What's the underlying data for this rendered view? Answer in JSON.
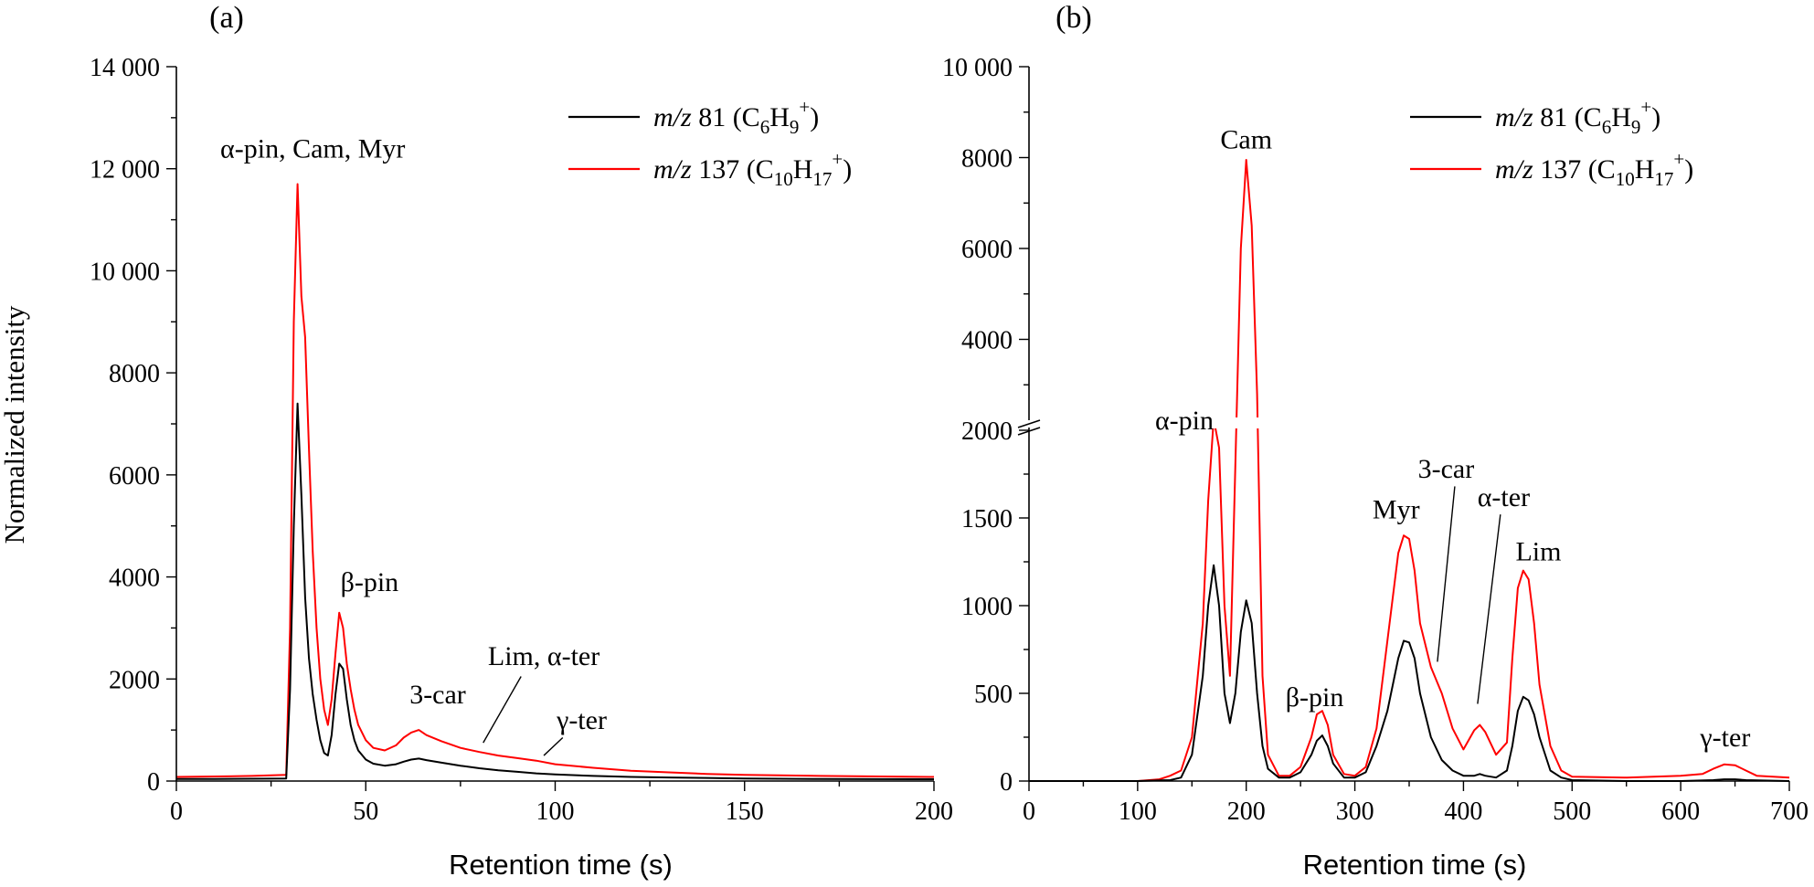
{
  "chart_data": [
    {
      "panel": "(a)",
      "type": "line",
      "xlabel": "Retention time (s)",
      "ylabel": "Normalized intensity",
      "xlim": [
        0,
        200
      ],
      "ylim": [
        0,
        14000
      ],
      "x_ticks": [
        0,
        50,
        100,
        150,
        200
      ],
      "x_tick_labels": [
        "0",
        "50",
        "100",
        "150",
        "200"
      ],
      "y_ticks": [
        0,
        2000,
        4000,
        6000,
        8000,
        10000,
        12000,
        14000
      ],
      "y_tick_labels": [
        "0",
        "2000",
        "4000",
        "6000",
        "8000",
        "10 000",
        "12 000",
        "14 000"
      ],
      "legend": {
        "placement": "top-right",
        "entries": [
          {
            "prefix": "m/z",
            "text": " 81 (C",
            "sub1": "6",
            "mid": "H",
            "sub2": "9",
            "sup": "+",
            "end": ")",
            "color": "#000000"
          },
          {
            "prefix": "m/z",
            "text": " 137 (C",
            "sub1": "10",
            "mid": "H",
            "sub2": "17",
            "sup": "+",
            "end": ")",
            "color": "#ff0000"
          }
        ]
      },
      "annotations": [
        {
          "text": "α-pin, Cam, Myr",
          "x": 36,
          "y": 12400
        },
        {
          "text": "β-pin",
          "x": 51,
          "y": 3900
        },
        {
          "text": "3-car",
          "x": 69,
          "y": 1700
        },
        {
          "text": "Lim, α-ter",
          "x": 97,
          "y": 2450
        },
        {
          "text": "γ-ter",
          "x": 107,
          "y": 1200
        }
      ],
      "series": [
        {
          "name": "m/z 81 (C6H9+)",
          "color": "#000000",
          "points": [
            [
              0,
              40
            ],
            [
              10,
              40
            ],
            [
              20,
              45
            ],
            [
              29,
              50
            ],
            [
              30,
              1800
            ],
            [
              31,
              5000
            ],
            [
              32,
              7400
            ],
            [
              33,
              5600
            ],
            [
              34,
              3600
            ],
            [
              35,
              2400
            ],
            [
              36,
              1700
            ],
            [
              37,
              1200
            ],
            [
              38,
              800
            ],
            [
              39,
              550
            ],
            [
              40,
              500
            ],
            [
              41,
              900
            ],
            [
              42,
              1700
            ],
            [
              43,
              2300
            ],
            [
              44,
              2200
            ],
            [
              45,
              1600
            ],
            [
              46,
              1100
            ],
            [
              47,
              800
            ],
            [
              48,
              600
            ],
            [
              50,
              420
            ],
            [
              52,
              340
            ],
            [
              55,
              300
            ],
            [
              58,
              330
            ],
            [
              60,
              380
            ],
            [
              62,
              420
            ],
            [
              64,
              440
            ],
            [
              66,
              410
            ],
            [
              70,
              360
            ],
            [
              75,
              300
            ],
            [
              80,
              250
            ],
            [
              85,
              210
            ],
            [
              90,
              180
            ],
            [
              95,
              150
            ],
            [
              100,
              130
            ],
            [
              110,
              100
            ],
            [
              120,
              80
            ],
            [
              130,
              70
            ],
            [
              140,
              60
            ],
            [
              150,
              50
            ],
            [
              170,
              40
            ],
            [
              200,
              35
            ]
          ]
        },
        {
          "name": "m/z 137 (C10H17+)",
          "color": "#ff0000",
          "points": [
            [
              0,
              80
            ],
            [
              10,
              90
            ],
            [
              20,
              100
            ],
            [
              29,
              120
            ],
            [
              30,
              3000
            ],
            [
              31,
              9000
            ],
            [
              32,
              11700
            ],
            [
              33,
              9500
            ],
            [
              34,
              8700
            ],
            [
              35,
              6500
            ],
            [
              36,
              4500
            ],
            [
              37,
              3000
            ],
            [
              38,
              2000
            ],
            [
              39,
              1400
            ],
            [
              40,
              1100
            ],
            [
              41,
              1600
            ],
            [
              42,
              2500
            ],
            [
              43,
              3300
            ],
            [
              44,
              3000
            ],
            [
              45,
              2300
            ],
            [
              46,
              1800
            ],
            [
              47,
              1400
            ],
            [
              48,
              1100
            ],
            [
              50,
              800
            ],
            [
              52,
              650
            ],
            [
              55,
              600
            ],
            [
              58,
              700
            ],
            [
              60,
              850
            ],
            [
              62,
              950
            ],
            [
              64,
              1000
            ],
            [
              66,
              900
            ],
            [
              70,
              780
            ],
            [
              75,
              650
            ],
            [
              80,
              570
            ],
            [
              85,
              500
            ],
            [
              90,
              450
            ],
            [
              95,
              400
            ],
            [
              100,
              330
            ],
            [
              110,
              260
            ],
            [
              120,
              200
            ],
            [
              130,
              170
            ],
            [
              140,
              140
            ],
            [
              150,
              120
            ],
            [
              170,
              100
            ],
            [
              200,
              80
            ]
          ]
        }
      ]
    },
    {
      "panel": "(b)",
      "type": "line",
      "xlabel": "Retention time (s)",
      "ylabel": "",
      "xlim": [
        0,
        700
      ],
      "ylim_lower": [
        0,
        2000
      ],
      "ylim_upper": [
        2000,
        10000
      ],
      "axis_break_at": 2000,
      "x_ticks": [
        0,
        100,
        200,
        300,
        400,
        500,
        600,
        700
      ],
      "x_tick_labels": [
        "0",
        "100",
        "200",
        "300",
        "400",
        "500",
        "600",
        "700"
      ],
      "y_ticks_lower": [
        0,
        500,
        1000,
        1500,
        2000
      ],
      "y_tick_labels_lower": [
        "0",
        "500",
        "1000",
        "1500",
        "2000"
      ],
      "y_ticks_upper": [
        4000,
        6000,
        8000,
        10000
      ],
      "y_tick_labels_upper": [
        "4000",
        "6000",
        "8000",
        "10 000"
      ],
      "legend": {
        "placement": "top-right",
        "entries": [
          {
            "prefix": "m/z",
            "text": " 81 (C",
            "sub1": "6",
            "mid": "H",
            "sub2": "9",
            "sup": "+",
            "end": ")",
            "color": "#000000"
          },
          {
            "prefix": "m/z",
            "text": " 137 (C",
            "sub1": "10",
            "mid": "H",
            "sub2": "17",
            "sup": "+",
            "end": ")",
            "color": "#ff0000"
          }
        ]
      },
      "annotations": [
        {
          "text": "α-pin",
          "x": 143,
          "y": 2220
        },
        {
          "text": "Cam",
          "x": 200,
          "y": 8400
        },
        {
          "text": "β-pin",
          "x": 263,
          "y": 480
        },
        {
          "text": "Myr",
          "x": 338,
          "y": 1550
        },
        {
          "text": "3-car",
          "x": 384,
          "y": 1780
        },
        {
          "text": "α-ter",
          "x": 437,
          "y": 1620
        },
        {
          "text": "Lim",
          "x": 469,
          "y": 1310
        },
        {
          "text": "γ-ter",
          "x": 641,
          "y": 250
        }
      ],
      "series": [
        {
          "name": "m/z 81 (C6H9+)",
          "color": "#000000",
          "points": [
            [
              0,
              0
            ],
            [
              100,
              0
            ],
            [
              130,
              5
            ],
            [
              140,
              20
            ],
            [
              150,
              150
            ],
            [
              160,
              600
            ],
            [
              165,
              1000
            ],
            [
              170,
              1230
            ],
            [
              175,
              1000
            ],
            [
              180,
              500
            ],
            [
              185,
              330
            ],
            [
              190,
              500
            ],
            [
              195,
              850
            ],
            [
              200,
              1030
            ],
            [
              205,
              900
            ],
            [
              210,
              500
            ],
            [
              215,
              200
            ],
            [
              220,
              70
            ],
            [
              230,
              20
            ],
            [
              240,
              20
            ],
            [
              250,
              50
            ],
            [
              260,
              150
            ],
            [
              265,
              230
            ],
            [
              270,
              260
            ],
            [
              275,
              200
            ],
            [
              280,
              100
            ],
            [
              290,
              20
            ],
            [
              300,
              20
            ],
            [
              310,
              50
            ],
            [
              320,
              200
            ],
            [
              330,
              400
            ],
            [
              340,
              700
            ],
            [
              345,
              800
            ],
            [
              350,
              790
            ],
            [
              355,
              700
            ],
            [
              360,
              500
            ],
            [
              370,
              250
            ],
            [
              380,
              120
            ],
            [
              390,
              60
            ],
            [
              400,
              30
            ],
            [
              410,
              30
            ],
            [
              415,
              40
            ],
            [
              420,
              30
            ],
            [
              430,
              20
            ],
            [
              440,
              60
            ],
            [
              445,
              200
            ],
            [
              450,
              400
            ],
            [
              455,
              480
            ],
            [
              460,
              460
            ],
            [
              465,
              380
            ],
            [
              470,
              250
            ],
            [
              480,
              60
            ],
            [
              490,
              20
            ],
            [
              500,
              5
            ],
            [
              550,
              0
            ],
            [
              600,
              0
            ],
            [
              630,
              5
            ],
            [
              640,
              10
            ],
            [
              650,
              10
            ],
            [
              660,
              5
            ],
            [
              700,
              0
            ]
          ]
        },
        {
          "name": "m/z 137 (C10H17+)",
          "color": "#ff0000",
          "points": [
            [
              0,
              0
            ],
            [
              100,
              0
            ],
            [
              120,
              10
            ],
            [
              130,
              30
            ],
            [
              140,
              60
            ],
            [
              150,
              250
            ],
            [
              160,
              900
            ],
            [
              165,
              1600
            ],
            [
              170,
              2250
            ],
            [
              175,
              1900
            ],
            [
              180,
              1000
            ],
            [
              185,
              600
            ],
            [
              190,
              1800
            ],
            [
              195,
              6000
            ],
            [
              200,
              7950
            ],
            [
              205,
              6500
            ],
            [
              210,
              2800
            ],
            [
              215,
              600
            ],
            [
              220,
              150
            ],
            [
              230,
              30
            ],
            [
              240,
              30
            ],
            [
              250,
              80
            ],
            [
              260,
              250
            ],
            [
              265,
              380
            ],
            [
              270,
              400
            ],
            [
              275,
              320
            ],
            [
              280,
              150
            ],
            [
              290,
              40
            ],
            [
              300,
              30
            ],
            [
              310,
              80
            ],
            [
              320,
              300
            ],
            [
              330,
              800
            ],
            [
              340,
              1300
            ],
            [
              345,
              1400
            ],
            [
              350,
              1380
            ],
            [
              355,
              1200
            ],
            [
              360,
              900
            ],
            [
              370,
              650
            ],
            [
              380,
              500
            ],
            [
              390,
              300
            ],
            [
              400,
              180
            ],
            [
              410,
              290
            ],
            [
              415,
              320
            ],
            [
              420,
              280
            ],
            [
              430,
              150
            ],
            [
              440,
              220
            ],
            [
              445,
              700
            ],
            [
              450,
              1100
            ],
            [
              455,
              1200
            ],
            [
              460,
              1150
            ],
            [
              465,
              900
            ],
            [
              470,
              550
            ],
            [
              480,
              200
            ],
            [
              490,
              60
            ],
            [
              500,
              25
            ],
            [
              550,
              20
            ],
            [
              600,
              30
            ],
            [
              620,
              40
            ],
            [
              630,
              70
            ],
            [
              640,
              95
            ],
            [
              650,
              90
            ],
            [
              660,
              60
            ],
            [
              670,
              30
            ],
            [
              700,
              20
            ]
          ]
        }
      ]
    }
  ]
}
